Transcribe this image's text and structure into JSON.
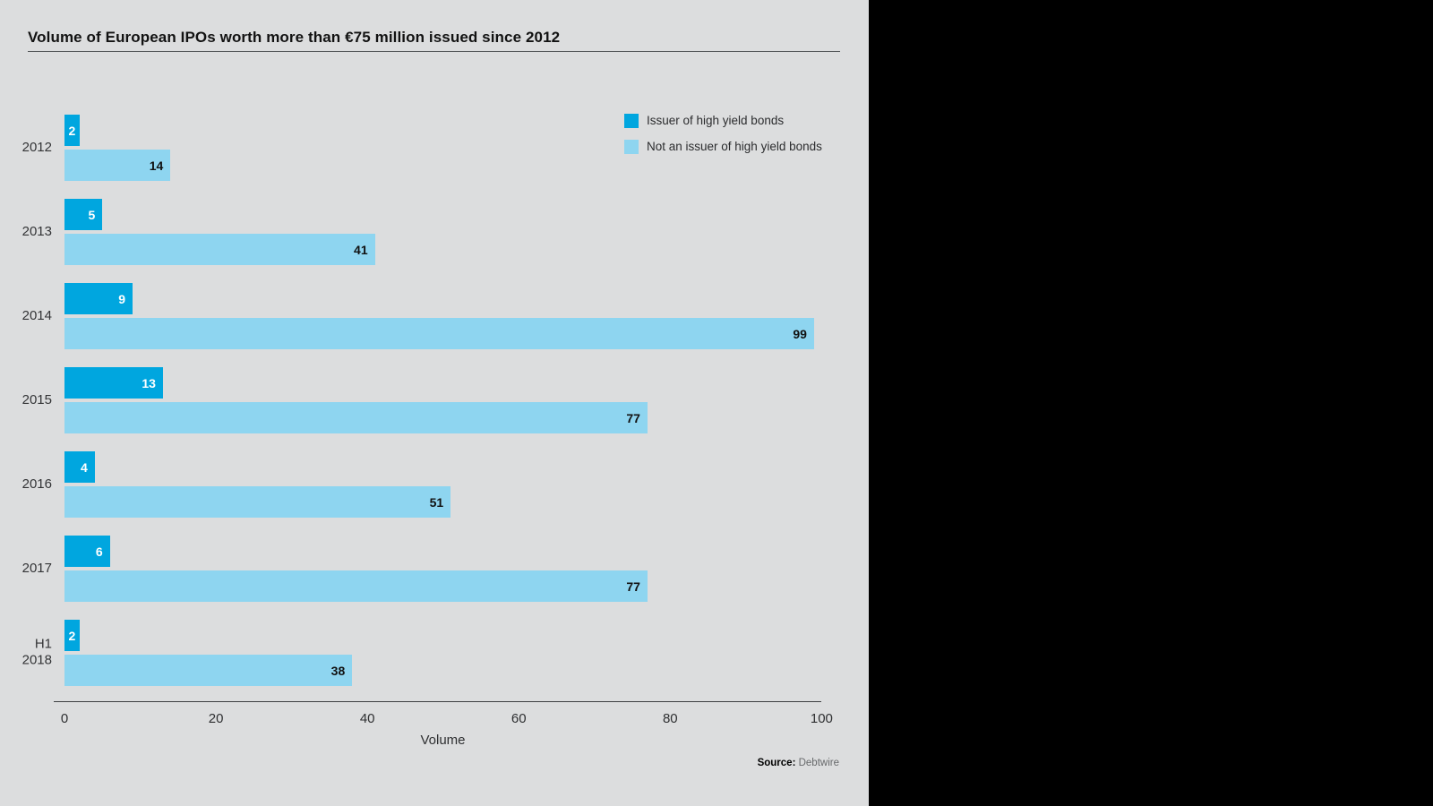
{
  "page": {
    "background_color": "#000000",
    "panel_color": "#dcddde"
  },
  "header": {
    "title": "Volume of European IPOs worth more than €75 million issued since 2012"
  },
  "chart_data": {
    "type": "bar",
    "orientation": "horizontal",
    "title": "Volume of European IPOs worth more than €75 million issued since 2012",
    "categories": [
      "2012",
      "2013",
      "2014",
      "2015",
      "2016",
      "2017",
      "H1\n2018"
    ],
    "series": [
      {
        "name": "Issuer of high yield bonds",
        "color": "#00a6df",
        "value_label_color": "#ffffff",
        "values": [
          2,
          5,
          9,
          13,
          4,
          6,
          2
        ]
      },
      {
        "name": "Not an issuer of high yield bonds",
        "color": "#8ed5f0",
        "value_label_color": "#111111",
        "values": [
          14,
          41,
          99,
          77,
          51,
          77,
          38
        ]
      }
    ],
    "xlabel": "Volume",
    "xlim": [
      0,
      100
    ],
    "xticks": [
      0,
      20,
      40,
      60,
      80,
      100
    ],
    "legend_position": "top-right",
    "grid": false,
    "value_labels": "inside-end"
  },
  "footer": {
    "source_label": "Source:",
    "source_value": "Debtwire"
  }
}
